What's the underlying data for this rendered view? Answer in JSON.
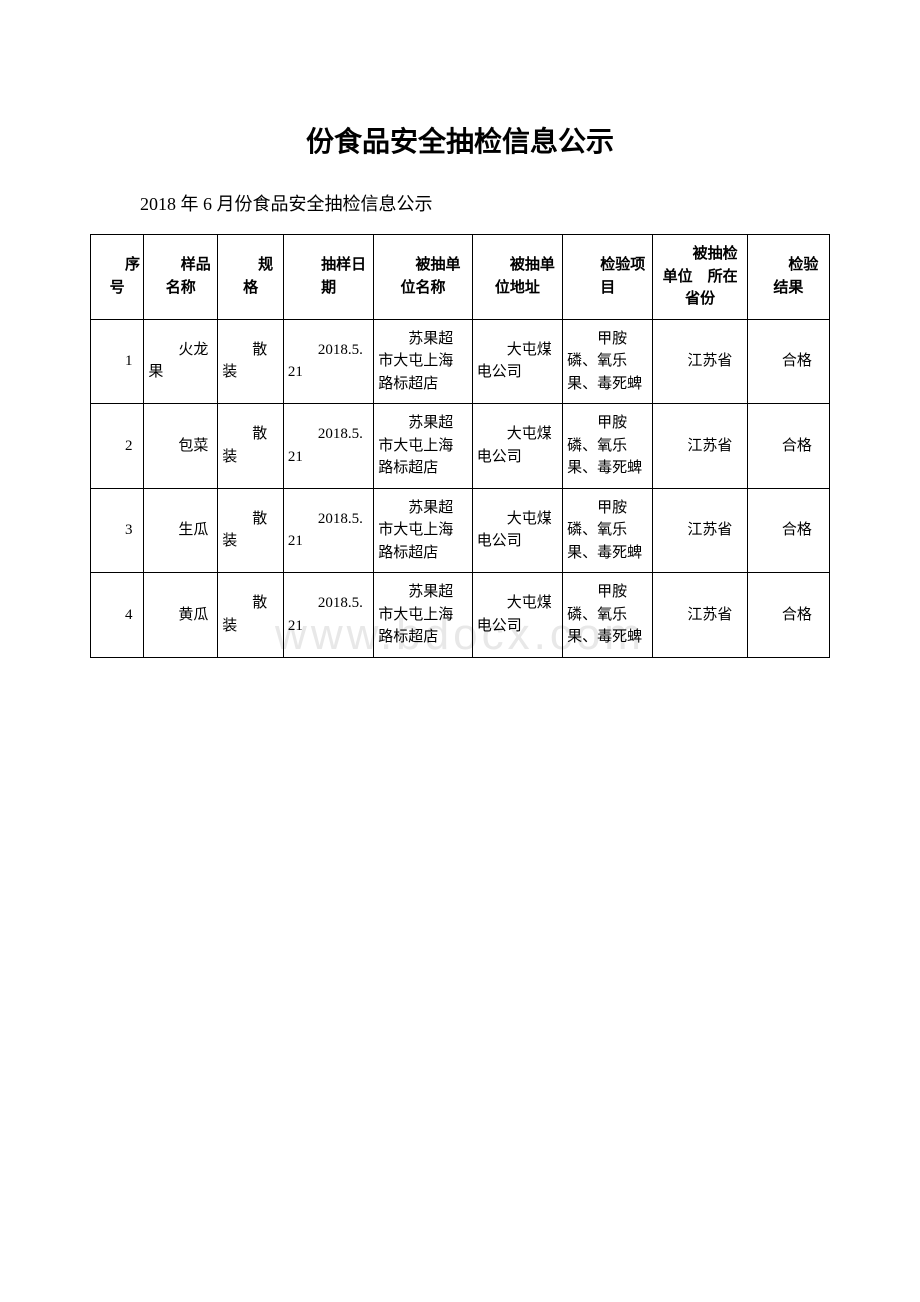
{
  "page": {
    "title": "份食品安全抽检信息公示",
    "subtitle": "2018 年 6 月份食品安全抽检信息公示",
    "watermark": "www.bdocx.com"
  },
  "table": {
    "columns": [
      {
        "label": "序号",
        "width": "6.5%"
      },
      {
        "label": "样品名称",
        "width": "9%"
      },
      {
        "label": "规格",
        "width": "8%"
      },
      {
        "label": "抽样日期",
        "width": "11%"
      },
      {
        "label": "被抽单位名称",
        "width": "12%"
      },
      {
        "label": "被抽单位地址",
        "width": "11%"
      },
      {
        "label": "检验项目",
        "width": "11%"
      },
      {
        "label": "被抽检单位　所在省份",
        "width": "11.5%"
      },
      {
        "label": "检验结果",
        "width": "10%"
      }
    ],
    "rows": [
      {
        "seq": "1",
        "sample_name": "火龙果",
        "spec": "散装",
        "date": "2018.5.21",
        "unit_name": "苏果超市大屯上海路标超店",
        "unit_addr": "大屯煤电公司",
        "test_item": "甲胺磷、氧乐果、毒死蜱",
        "province": "江苏省",
        "result": "合格"
      },
      {
        "seq": "2",
        "sample_name": "包菜",
        "spec": "散装",
        "date": "2018.5.21",
        "unit_name": "苏果超市大屯上海路标超店",
        "unit_addr": "大屯煤电公司",
        "test_item": "甲胺磷、氧乐果、毒死蜱",
        "province": "江苏省",
        "result": "合格"
      },
      {
        "seq": "3",
        "sample_name": "生瓜",
        "spec": "散装",
        "date": "2018.5.21",
        "unit_name": "苏果超市大屯上海路标超店",
        "unit_addr": "大屯煤电公司",
        "test_item": "甲胺磷、氧乐果、毒死蜱",
        "province": "江苏省",
        "result": "合格"
      },
      {
        "seq": "4",
        "sample_name": "黄瓜",
        "spec": "散装",
        "date": "2018.5.21",
        "unit_name": "苏果超市大屯上海路标超店",
        "unit_addr": "大屯煤电公司",
        "test_item": "甲胺磷、氧乐果、毒死蜱",
        "province": "江苏省",
        "result": "合格"
      }
    ],
    "border_color": "#000000",
    "background_color": "#ffffff",
    "font_size_cell": 15,
    "font_size_title": 28,
    "font_size_subtitle": 18
  }
}
